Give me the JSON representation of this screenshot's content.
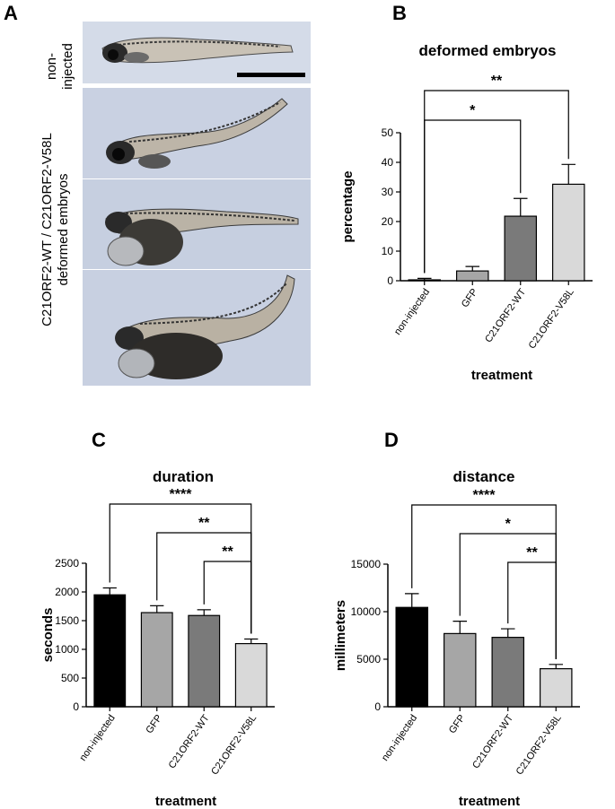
{
  "panel_a": {
    "letter": "A",
    "label_top_line1": "non-",
    "label_top_line2": "injected",
    "label_bottom_line1": "C21ORF2-WT / C21ORF2-V58L",
    "label_bottom_line2": "deformed embryos"
  },
  "panel_letters": {
    "b": "B",
    "c": "C",
    "d": "D"
  },
  "colors": {
    "non_injected": "#000000",
    "gfp": "#a6a6a6",
    "wt": "#7a7a7a",
    "v58l": "#d9d9d9",
    "photo_bg": "#cdd4e3"
  },
  "chart_data": [
    {
      "id": "b",
      "type": "bar",
      "title": "deformed embryos",
      "xlabel": "treatment",
      "ylabel": "percentage",
      "categories": [
        "non-injected",
        "GFP",
        "C21ORF2-WT",
        "C21ORF2-V58L"
      ],
      "values": [
        0.3,
        3.3,
        21.8,
        32.6
      ],
      "errors": [
        0.5,
        1.5,
        6.0,
        6.7
      ],
      "ylim": [
        0,
        50
      ],
      "yticks": [
        0,
        10,
        20,
        30,
        40,
        50
      ],
      "yticklabels": [
        "0",
        "10",
        "20",
        "30",
        "40",
        "50"
      ],
      "significance": [
        {
          "from": 0,
          "to": 2,
          "label": "*"
        },
        {
          "from": 0,
          "to": 3,
          "label": "**"
        }
      ]
    },
    {
      "id": "c",
      "type": "bar",
      "title": "duration",
      "xlabel": "treatment",
      "ylabel": "seconds",
      "categories": [
        "non-injected",
        "GFP",
        "C21ORF2-WT",
        "C21ORF2-V58L"
      ],
      "values": [
        1950,
        1640,
        1590,
        1100
      ],
      "errors": [
        120,
        120,
        100,
        80
      ],
      "ylim": [
        0,
        2500
      ],
      "yticks": [
        0,
        500,
        1000,
        1500,
        2000,
        2500
      ],
      "yticklabels": [
        "0",
        "500",
        "1000",
        "1500",
        "2000",
        "2500"
      ],
      "significance": [
        {
          "from": 0,
          "to": 3,
          "label": "****"
        },
        {
          "from": 1,
          "to": 3,
          "label": "**"
        },
        {
          "from": 2,
          "to": 3,
          "label": "**"
        }
      ]
    },
    {
      "id": "d",
      "type": "bar",
      "title": "distance",
      "xlabel": "treatment",
      "ylabel": "millimeters",
      "categories": [
        "non-injected",
        "GFP",
        "C21ORF2-WT",
        "C21ORF2-V58L"
      ],
      "values": [
        10450,
        7700,
        7300,
        4000
      ],
      "errors": [
        1450,
        1300,
        900,
        450
      ],
      "ylim": [
        0,
        15000
      ],
      "yticks": [
        0,
        5000,
        10000,
        15000
      ],
      "yticklabels": [
        "0",
        "5000",
        "10000",
        "15000"
      ],
      "significance": [
        {
          "from": 0,
          "to": 3,
          "label": "****"
        },
        {
          "from": 1,
          "to": 3,
          "label": "*"
        },
        {
          "from": 2,
          "to": 3,
          "label": "**"
        }
      ]
    }
  ]
}
